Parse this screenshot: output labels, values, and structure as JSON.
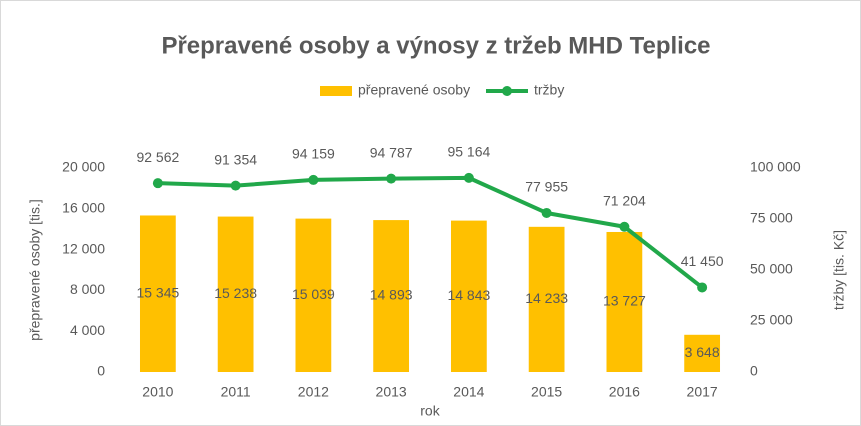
{
  "chart_data": {
    "type": "bar-line",
    "title": "Přepravené osoby a výnosy z tržeb MHD Teplice",
    "x_label": "rok",
    "y_label": "přepravené osoby [tis.]",
    "y2_label": "tržby [tis. Kč]",
    "categories": [
      "2010",
      "2011",
      "2012",
      "2013",
      "2014",
      "2015",
      "2016",
      "2017"
    ],
    "series": [
      {
        "name": "přepravené osoby",
        "type": "bar",
        "color": "#ffc000",
        "axis": "y",
        "values": [
          15345,
          15238,
          15039,
          14893,
          14843,
          14233,
          13727,
          3648
        ],
        "value_labels": [
          "15 345",
          "15 238",
          "15 039",
          "14 893",
          "14 843",
          "14 233",
          "13 727",
          "3 648"
        ]
      },
      {
        "name": "tržby",
        "type": "line",
        "color": "#21a84a",
        "axis": "y2",
        "values": [
          92562,
          91354,
          94159,
          94787,
          95164,
          77955,
          71204,
          41450
        ],
        "value_labels": [
          "92 562",
          "91 354",
          "94 159",
          "94 787",
          "95 164",
          "77 955",
          "71 204",
          "41 450"
        ]
      }
    ],
    "ylim": [
      0,
      20000
    ],
    "yticks": [
      0,
      {
        "value": 4000,
        "label": "4 000"
      },
      {
        "value": 8000,
        "label": "8 000"
      },
      {
        "value": 12000,
        "label": "12 000"
      },
      {
        "value": 16000,
        "label": "16 000"
      },
      {
        "value": 20000,
        "label": "20 000"
      }
    ],
    "y2lim": [
      0,
      100000
    ],
    "y2ticks": [
      0,
      {
        "value": 25000,
        "label": "25 000"
      },
      {
        "value": 50000,
        "label": "50 000"
      },
      {
        "value": 75000,
        "label": "75 000"
      },
      {
        "value": 100000,
        "label": "100 000"
      }
    ],
    "grid": false,
    "legend": "top"
  }
}
